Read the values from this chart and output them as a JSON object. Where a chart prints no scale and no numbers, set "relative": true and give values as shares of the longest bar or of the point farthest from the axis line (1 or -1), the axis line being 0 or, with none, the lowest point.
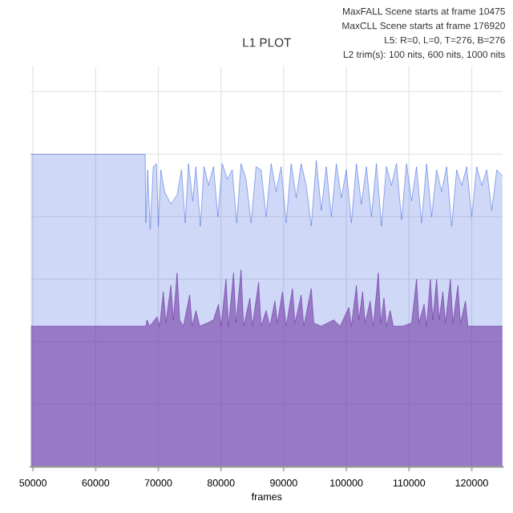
{
  "chart_data": {
    "type": "area",
    "title": "L1 PLOT",
    "xlabel": "frames",
    "relative": true,
    "grid": true,
    "annotations": [
      "MaxFALL Scene starts at frame 10475",
      "MaxCLL Scene starts at frame 176920",
      "L5: R=0, L=0, T=276, B=276",
      "L2 trim(s): 100 nits, 600 nits, 1000 nits"
    ],
    "xlim": [
      49650,
      124950
    ],
    "xticks": [
      50000,
      60000,
      70000,
      80000,
      90000,
      100000,
      110000,
      120000
    ],
    "series": [
      {
        "color": "#4169e1",
        "x": [
          49650,
          67900,
          68000,
          68300,
          68700,
          69200,
          69700,
          70000,
          70400,
          71000,
          72000,
          73000,
          73700,
          74300,
          74800,
          75500,
          76000,
          76700,
          77300,
          78000,
          78800,
          79500,
          80200,
          81000,
          81800,
          82500,
          83200,
          84000,
          84800,
          85600,
          86400,
          87200,
          88000,
          88800,
          89600,
          90400,
          91200,
          92000,
          92800,
          93600,
          94400,
          95200,
          96000,
          96800,
          97600,
          98400,
          99200,
          100000,
          100800,
          101600,
          102400,
          103200,
          104000,
          104800,
          105600,
          106400,
          107200,
          108000,
          108800,
          109600,
          110400,
          111200,
          112000,
          112800,
          113600,
          114400,
          115200,
          116000,
          116800,
          117600,
          118400,
          119200,
          120000,
          120800,
          121600,
          122400,
          123200,
          124000,
          124900
        ],
        "values": [
          1,
          1,
          0.78,
          0.95,
          0.76,
          0.96,
          0.97,
          0.77,
          0.95,
          0.88,
          0.84,
          0.87,
          0.95,
          0.78,
          0.97,
          0.85,
          0.96,
          0.77,
          0.96,
          0.9,
          0.96,
          0.8,
          0.97,
          0.92,
          0.95,
          0.78,
          0.97,
          0.92,
          0.78,
          0.96,
          0.95,
          0.8,
          0.97,
          0.88,
          0.96,
          0.78,
          0.97,
          0.86,
          0.97,
          0.9,
          0.77,
          0.98,
          0.82,
          0.96,
          0.8,
          0.97,
          0.86,
          0.95,
          0.78,
          0.97,
          0.84,
          0.96,
          0.8,
          0.97,
          0.77,
          0.96,
          0.9,
          0.97,
          0.79,
          0.97,
          0.85,
          0.96,
          0.78,
          0.97,
          0.8,
          0.95,
          0.88,
          0.96,
          0.77,
          0.95,
          0.9,
          0.96,
          0.8,
          0.96,
          0.9,
          0.95,
          0.82,
          0.95,
          0.93
        ]
      },
      {
        "color": "#6a2a9e",
        "x": [
          49650,
          68000,
          68200,
          68600,
          69800,
          70200,
          70800,
          71200,
          72000,
          72400,
          73000,
          73400,
          74000,
          75000,
          75400,
          76000,
          76600,
          77800,
          78800,
          79600,
          80000,
          80800,
          81200,
          82000,
          82400,
          83200,
          83600,
          84600,
          85000,
          86000,
          86400,
          87200,
          87800,
          88600,
          89000,
          89800,
          90400,
          91400,
          91800,
          92800,
          93200,
          94400,
          94800,
          96000,
          98000,
          99000,
          100400,
          100800,
          101600,
          102000,
          102600,
          103000,
          103800,
          104300,
          105100,
          105500,
          106000,
          106400,
          107000,
          107500,
          109000,
          110400,
          111200,
          111600,
          112400,
          112800,
          113400,
          113800,
          114400,
          114800,
          115400,
          115800,
          116600,
          117000,
          117800,
          118200,
          119000,
          119400,
          120000,
          124900
        ],
        "values": [
          0.45,
          0.45,
          0.47,
          0.45,
          0.48,
          0.45,
          0.56,
          0.46,
          0.58,
          0.47,
          0.62,
          0.47,
          0.45,
          0.55,
          0.45,
          0.5,
          0.45,
          0.46,
          0.47,
          0.52,
          0.45,
          0.6,
          0.45,
          0.62,
          0.46,
          0.63,
          0.45,
          0.54,
          0.45,
          0.59,
          0.45,
          0.5,
          0.45,
          0.53,
          0.46,
          0.56,
          0.45,
          0.57,
          0.46,
          0.55,
          0.45,
          0.57,
          0.46,
          0.45,
          0.47,
          0.45,
          0.51,
          0.45,
          0.58,
          0.47,
          0.56,
          0.46,
          0.53,
          0.45,
          0.62,
          0.46,
          0.54,
          0.45,
          0.5,
          0.45,
          0.45,
          0.46,
          0.6,
          0.46,
          0.52,
          0.45,
          0.6,
          0.47,
          0.6,
          0.47,
          0.56,
          0.46,
          0.6,
          0.46,
          0.58,
          0.46,
          0.53,
          0.45,
          0.45,
          0.45
        ]
      }
    ]
  }
}
